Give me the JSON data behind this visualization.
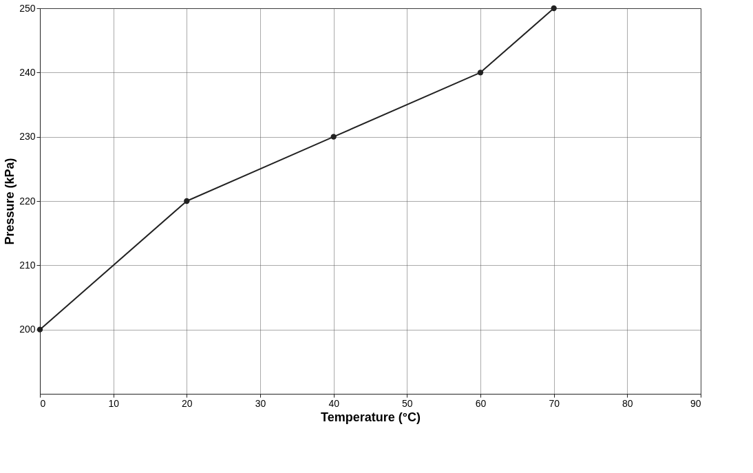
{
  "chart_data": {
    "type": "line",
    "xlabel": "Temperature (°C)",
    "ylabel": "Pressure (kPa)",
    "x": [
      0,
      20,
      40,
      60,
      70
    ],
    "series": [
      {
        "color": "#222222",
        "values": [
          200,
          220,
          230,
          240,
          250
        ]
      }
    ],
    "xlim": [
      0,
      90
    ],
    "xticks": [
      0,
      10,
      20,
      30,
      40,
      50,
      60,
      70,
      80,
      90
    ],
    "ylim": [
      190,
      250
    ],
    "yticks": [
      200,
      210,
      220,
      230,
      240,
      250
    ],
    "grid": true,
    "marker": "circle",
    "line_style": "solid"
  }
}
